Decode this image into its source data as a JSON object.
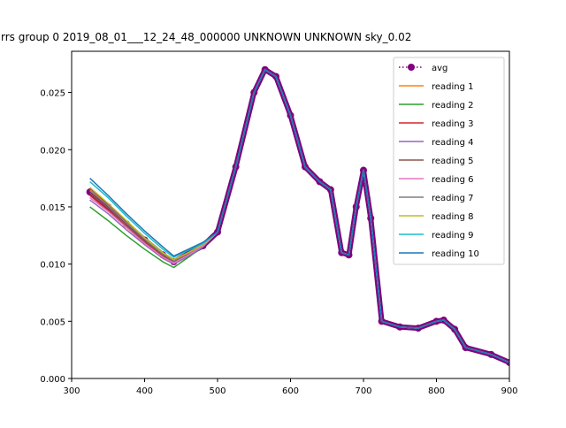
{
  "chart_data": {
    "type": "line",
    "title": "rrs group 0 2019_08_01___12_24_48_000000 UNKNOWN UNKNOWN sky_0.02",
    "x": [
      325,
      350,
      375,
      400,
      425,
      440,
      460,
      480,
      500,
      525,
      550,
      565,
      580,
      600,
      620,
      640,
      655,
      670,
      680,
      690,
      700,
      710,
      725,
      750,
      775,
      800,
      810,
      825,
      840,
      875,
      900
    ],
    "xlim": [
      300,
      900
    ],
    "xticks": [
      300,
      400,
      500,
      600,
      700,
      800,
      900
    ],
    "ylim": [
      0,
      0.0286
    ],
    "yticks": [
      {
        "value": 0,
        "label": "0.000"
      },
      {
        "value": 0.005,
        "label": "0.005"
      },
      {
        "value": 0.01,
        "label": "0.010"
      },
      {
        "value": 0.015,
        "label": "0.015"
      },
      {
        "value": 0.02,
        "label": "0.020"
      },
      {
        "value": 0.025,
        "label": "0.025"
      }
    ],
    "legend": "upper right",
    "series": [
      {
        "name": "avg",
        "color": "#800080",
        "values": [
          0.0163,
          0.015,
          0.0135,
          0.0121,
          0.0108,
          0.0102,
          0.0109,
          0.0116,
          0.0128,
          0.0185,
          0.025,
          0.027,
          0.0264,
          0.023,
          0.0185,
          0.0172,
          0.0165,
          0.011,
          0.0108,
          0.015,
          0.0182,
          0.014,
          0.005,
          0.0045,
          0.0044,
          0.005,
          0.0051,
          0.0043,
          0.0027,
          0.0021,
          0.0014
        ]
      },
      {
        "name": "reading 1",
        "color": "#ff7f0e",
        "values": [
          0.0165,
          0.0151,
          0.0136,
          0.0122,
          0.0109,
          0.0103,
          0.011,
          0.0117,
          0.0128,
          0.0185,
          0.025,
          0.027,
          0.0264,
          0.023,
          0.0185,
          0.0172,
          0.0165,
          0.011,
          0.0108,
          0.015,
          0.0182,
          0.014,
          0.005,
          0.0045,
          0.0044,
          0.005,
          0.0051,
          0.0043,
          0.0027,
          0.0021,
          0.0014
        ]
      },
      {
        "name": "reading 2",
        "color": "#2ca02c",
        "values": [
          0.015,
          0.0138,
          0.0125,
          0.0113,
          0.0102,
          0.0097,
          0.0106,
          0.0115,
          0.0128,
          0.0185,
          0.025,
          0.027,
          0.0264,
          0.023,
          0.0185,
          0.0172,
          0.0165,
          0.011,
          0.0108,
          0.015,
          0.0182,
          0.014,
          0.005,
          0.0045,
          0.0044,
          0.005,
          0.0051,
          0.0043,
          0.0027,
          0.0021,
          0.0014
        ]
      },
      {
        "name": "reading 3",
        "color": "#d62728",
        "values": [
          0.016,
          0.0147,
          0.0133,
          0.0119,
          0.0107,
          0.0101,
          0.0108,
          0.0116,
          0.0128,
          0.0185,
          0.025,
          0.027,
          0.0264,
          0.023,
          0.0185,
          0.0172,
          0.0165,
          0.011,
          0.0108,
          0.015,
          0.0182,
          0.014,
          0.005,
          0.0045,
          0.0044,
          0.005,
          0.0051,
          0.0043,
          0.0027,
          0.0021,
          0.0014
        ]
      },
      {
        "name": "reading 4",
        "color": "#9467bd",
        "values": [
          0.0156,
          0.0144,
          0.013,
          0.0117,
          0.0105,
          0.01,
          0.0107,
          0.0115,
          0.0128,
          0.0185,
          0.025,
          0.027,
          0.0264,
          0.023,
          0.0185,
          0.0172,
          0.0165,
          0.011,
          0.0108,
          0.015,
          0.0182,
          0.014,
          0.005,
          0.0045,
          0.0044,
          0.005,
          0.0051,
          0.0043,
          0.0027,
          0.0021,
          0.0014
        ]
      },
      {
        "name": "reading 5",
        "color": "#8c564b",
        "values": [
          0.0162,
          0.0149,
          0.0134,
          0.012,
          0.0108,
          0.0102,
          0.0109,
          0.0116,
          0.0128,
          0.0185,
          0.025,
          0.027,
          0.0264,
          0.023,
          0.0185,
          0.0172,
          0.0165,
          0.011,
          0.0108,
          0.015,
          0.0182,
          0.014,
          0.005,
          0.0045,
          0.0044,
          0.005,
          0.0051,
          0.0043,
          0.0027,
          0.0021,
          0.0014
        ]
      },
      {
        "name": "reading 6",
        "color": "#e377c2",
        "values": [
          0.0158,
          0.0146,
          0.0132,
          0.0118,
          0.0106,
          0.0101,
          0.0108,
          0.0116,
          0.0128,
          0.0185,
          0.025,
          0.027,
          0.0264,
          0.023,
          0.0185,
          0.0172,
          0.0165,
          0.011,
          0.0108,
          0.015,
          0.0182,
          0.014,
          0.005,
          0.0045,
          0.0044,
          0.005,
          0.0051,
          0.0043,
          0.0027,
          0.0021,
          0.0014
        ]
      },
      {
        "name": "reading 7",
        "color": "#7f7f7f",
        "values": [
          0.0164,
          0.0151,
          0.0136,
          0.0122,
          0.0109,
          0.0103,
          0.011,
          0.0117,
          0.0128,
          0.0185,
          0.025,
          0.027,
          0.0264,
          0.023,
          0.0185,
          0.0172,
          0.0165,
          0.011,
          0.0108,
          0.015,
          0.0182,
          0.014,
          0.005,
          0.0045,
          0.0044,
          0.005,
          0.0051,
          0.0043,
          0.0027,
          0.0021,
          0.0014
        ]
      },
      {
        "name": "reading 8",
        "color": "#bcbd22",
        "values": [
          0.0167,
          0.0153,
          0.0138,
          0.0123,
          0.011,
          0.0104,
          0.011,
          0.0117,
          0.0128,
          0.0185,
          0.025,
          0.027,
          0.0264,
          0.023,
          0.0185,
          0.0172,
          0.0165,
          0.011,
          0.0108,
          0.015,
          0.0182,
          0.014,
          0.005,
          0.0045,
          0.0044,
          0.005,
          0.0051,
          0.0043,
          0.0027,
          0.0021,
          0.0014
        ]
      },
      {
        "name": "reading 9",
        "color": "#17becf",
        "values": [
          0.0172,
          0.0158,
          0.0142,
          0.0127,
          0.0113,
          0.0106,
          0.0112,
          0.0118,
          0.0128,
          0.0185,
          0.025,
          0.027,
          0.0264,
          0.023,
          0.0185,
          0.0172,
          0.0165,
          0.011,
          0.0108,
          0.015,
          0.0182,
          0.014,
          0.005,
          0.0045,
          0.0044,
          0.005,
          0.0051,
          0.0043,
          0.0027,
          0.0021,
          0.0014
        ]
      },
      {
        "name": "reading 10",
        "color": "#1f77b4",
        "values": [
          0.0175,
          0.016,
          0.0144,
          0.0129,
          0.0115,
          0.0107,
          0.0113,
          0.0119,
          0.0128,
          0.0185,
          0.025,
          0.027,
          0.0264,
          0.023,
          0.0185,
          0.0172,
          0.0165,
          0.011,
          0.0108,
          0.015,
          0.0182,
          0.014,
          0.005,
          0.0045,
          0.0044,
          0.005,
          0.0051,
          0.0043,
          0.0027,
          0.0021,
          0.0014
        ]
      }
    ]
  }
}
